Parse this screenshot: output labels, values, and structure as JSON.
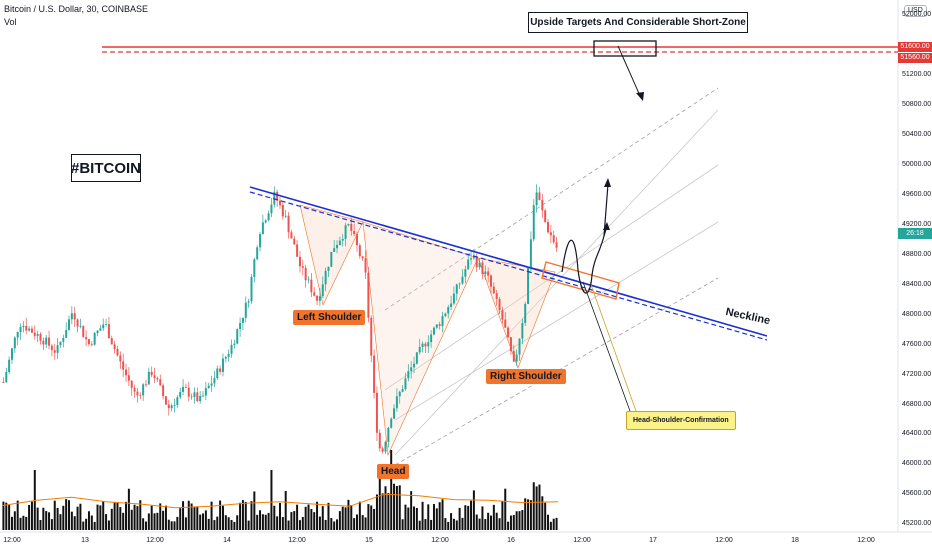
{
  "header": {
    "symbol_line": "Bitcoin / U.S. Dollar, 30, COINBASE",
    "indicator": "Vol",
    "currency_badge": "USD"
  },
  "annotations": {
    "title_box": "#BITCOIN",
    "targets_box": "Upside Targets And Considerable Short-Zone",
    "left_shoulder": "Left Shoulder",
    "head": "Head",
    "right_shoulder": "Right Shoulder",
    "confirmation": "Head-Shoulder-Confirmation",
    "neckline": "Neckline"
  },
  "price_tags": {
    "upper": "51600.00",
    "lower": "51560.00",
    "current_countdown": "26:18"
  },
  "colors": {
    "up": "#26a69a",
    "down": "#ef5350",
    "neckline": "#1a2fd1",
    "target_line": "#e53935",
    "pill": "#f0742b",
    "volume_ma": "#f57c00",
    "channel": "#9e9e9e"
  },
  "chart_data": {
    "type": "candlestick",
    "symbol": "BTCUSD",
    "timeframe": "30",
    "exchange": "COINBASE",
    "y_axis": {
      "ticks": [
        "52000.00",
        "51200.00",
        "50800.00",
        "50400.00",
        "50000.00",
        "49600.00",
        "49200.00",
        "48800.00",
        "48400.00",
        "48000.00",
        "47600.00",
        "47200.00",
        "46800.00",
        "46400.00",
        "46000.00",
        "45600.00",
        "45200.00"
      ],
      "range": [
        45150,
        52100
      ]
    },
    "x_axis": {
      "ticks": [
        "12:00",
        "13",
        "12:00",
        "14",
        "12:00",
        "15",
        "12:00",
        "16",
        "12:00",
        "17",
        "12:00",
        "18",
        "12:00"
      ]
    },
    "price_path": [
      {
        "t": 0,
        "p": 47100
      },
      {
        "t": 3,
        "p": 47900
      },
      {
        "t": 7,
        "p": 47700
      },
      {
        "t": 10,
        "p": 47500
      },
      {
        "t": 13,
        "p": 48050
      },
      {
        "t": 16,
        "p": 47600
      },
      {
        "t": 19,
        "p": 47900
      },
      {
        "t": 22,
        "p": 47350
      },
      {
        "t": 25,
        "p": 46900
      },
      {
        "t": 28,
        "p": 47250
      },
      {
        "t": 31,
        "p": 46750
      },
      {
        "t": 34,
        "p": 47000
      },
      {
        "t": 37,
        "p": 46850
      },
      {
        "t": 40,
        "p": 47200
      },
      {
        "t": 43,
        "p": 47600
      },
      {
        "t": 46,
        "p": 48200
      },
      {
        "t": 48,
        "p": 49100
      },
      {
        "t": 51,
        "p": 49600
      },
      {
        "t": 53,
        "p": 49300
      },
      {
        "t": 56,
        "p": 48600
      },
      {
        "t": 59,
        "p": 48200
      },
      {
        "t": 62,
        "p": 48900
      },
      {
        "t": 65,
        "p": 49200
      },
      {
        "t": 68,
        "p": 48600
      },
      {
        "t": 70,
        "p": 46600
      },
      {
        "t": 71,
        "p": 46100
      },
      {
        "t": 73,
        "p": 46700
      },
      {
        "t": 76,
        "p": 47200
      },
      {
        "t": 79,
        "p": 47600
      },
      {
        "t": 82,
        "p": 47900
      },
      {
        "t": 85,
        "p": 48300
      },
      {
        "t": 88,
        "p": 48800
      },
      {
        "t": 91,
        "p": 48500
      },
      {
        "t": 94,
        "p": 47900
      },
      {
        "t": 96,
        "p": 47300
      },
      {
        "t": 98,
        "p": 48100
      },
      {
        "t": 100,
        "p": 49700
      },
      {
        "t": 102,
        "p": 49200
      },
      {
        "t": 104,
        "p": 48900
      }
    ],
    "volume_ma": [
      45450,
      45520,
      45560,
      45500,
      45470,
      45420,
      45440,
      45480,
      45500,
      45470,
      45440,
      45600,
      45580,
      45530,
      45520,
      45490,
      45500
    ]
  }
}
